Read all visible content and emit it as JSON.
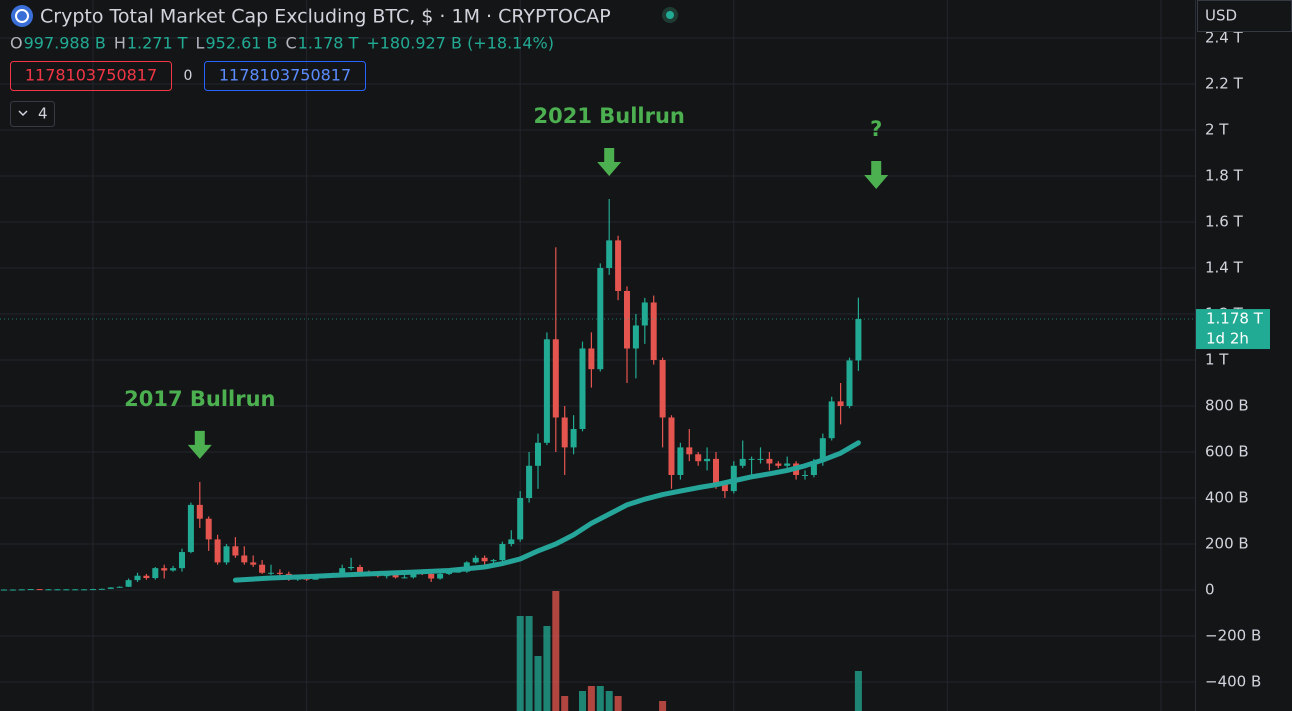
{
  "chart_data": {
    "type": "candlestick",
    "title": "Crypto Total Market Cap Excluding BTC, $ · 1M · CRYPTOCAP",
    "ohlc_legend": [
      {
        "label": "O",
        "value": "997.988 B"
      },
      {
        "label": "H",
        "value": "1.271 T"
      },
      {
        "label": "L",
        "value": "952.61 B"
      },
      {
        "label": "C",
        "value": "1.178 T"
      }
    ],
    "change": "+180.927 B (+18.14%)",
    "indicator_boxes": [
      "1178103750817",
      "0",
      "1178103750817"
    ],
    "indicator_count": "4",
    "currency": "USD",
    "price_tag": {
      "price": "1.178 T",
      "countdown": "1d 2h"
    },
    "ylim": [
      -526,
      2565
    ],
    "yticks": [
      {
        "value": 2400,
        "label": "2.4 T"
      },
      {
        "value": 2200,
        "label": "2.2 T"
      },
      {
        "value": 2000,
        "label": "2 T"
      },
      {
        "value": 1800,
        "label": "1.8 T"
      },
      {
        "value": 1600,
        "label": "1.6 T"
      },
      {
        "value": 1400,
        "label": "1.4 T"
      },
      {
        "value": 1200,
        "label": "1.2 T"
      },
      {
        "value": 1000,
        "label": "1 T"
      },
      {
        "value": 800,
        "label": "800 B"
      },
      {
        "value": 600,
        "label": "600 B"
      },
      {
        "value": 400,
        "label": "400 B"
      },
      {
        "value": 200,
        "label": "200 B"
      },
      0,
      {
        "value": -200,
        "label": "−200 B"
      },
      {
        "value": -400,
        "label": "−400 B"
      }
    ],
    "up_color": "#22ab94",
    "down_color": "#e5554f",
    "open": [
      2,
      2,
      2,
      3,
      4,
      3,
      3,
      3,
      3,
      3,
      3,
      4,
      5,
      11,
      14,
      43,
      62,
      52,
      95,
      85,
      95,
      165,
      370,
      310,
      220,
      120,
      190,
      150,
      120,
      110,
      75,
      75,
      70,
      45,
      50,
      45,
      55,
      60,
      65,
      95,
      100,
      75,
      70,
      60,
      65,
      55,
      55,
      75,
      70,
      50,
      70,
      80,
      80,
      120,
      140,
      125,
      130,
      200,
      220,
      400,
      540,
      640,
      1090,
      750,
      620,
      700,
      1050,
      960,
      1400,
      1520,
      1300,
      1050,
      1150,
      1250,
      1000,
      750,
      500,
      620,
      590,
      560,
      570,
      460,
      430,
      540,
      570,
      570,
      570,
      550,
      540,
      550,
      500,
      500,
      560,
      660,
      820,
      800,
      997.988
    ],
    "high": [
      3,
      3,
      3,
      4,
      4,
      4,
      4,
      4,
      4,
      4,
      5,
      6,
      12,
      16,
      50,
      75,
      70,
      100,
      110,
      105,
      180,
      380,
      470,
      320,
      240,
      200,
      230,
      190,
      150,
      130,
      110,
      90,
      80,
      60,
      55,
      60,
      65,
      75,
      110,
      140,
      110,
      85,
      75,
      80,
      70,
      65,
      80,
      90,
      75,
      75,
      85,
      95,
      125,
      150,
      150,
      135,
      210,
      260,
      430,
      600,
      680,
      1120,
      1490,
      800,
      760,
      1080,
      1120,
      1420,
      1700,
      1540,
      1320,
      1200,
      1270,
      1280,
      1010,
      760,
      640,
      700,
      600,
      620,
      600,
      470,
      560,
      650,
      580,
      620,
      600,
      560,
      580,
      560,
      520,
      570,
      680,
      840,
      900,
      1010,
      1271
    ],
    "low": [
      1,
      1,
      2,
      2,
      3,
      2,
      2,
      2,
      2,
      2,
      3,
      4,
      5,
      10,
      13,
      35,
      45,
      45,
      50,
      80,
      80,
      160,
      270,
      170,
      110,
      110,
      140,
      110,
      100,
      70,
      65,
      60,
      40,
      40,
      40,
      45,
      50,
      55,
      60,
      85,
      70,
      60,
      55,
      50,
      50,
      50,
      50,
      65,
      35,
      45,
      65,
      75,
      75,
      115,
      110,
      110,
      125,
      190,
      210,
      380,
      440,
      630,
      600,
      500,
      590,
      690,
      880,
      950,
      1370,
      1260,
      900,
      920,
      1070,
      980,
      620,
      440,
      480,
      560,
      540,
      520,
      440,
      400,
      420,
      530,
      500,
      550,
      520,
      530,
      520,
      480,
      480,
      490,
      540,
      650,
      720,
      790,
      952.61
    ],
    "close": [
      2,
      2,
      3,
      4,
      3,
      3,
      3,
      3,
      3,
      3,
      4,
      5,
      11,
      14,
      43,
      62,
      52,
      95,
      85,
      95,
      165,
      370,
      310,
      220,
      120,
      190,
      150,
      120,
      110,
      75,
      75,
      70,
      45,
      50,
      45,
      55,
      60,
      65,
      95,
      100,
      75,
      70,
      60,
      65,
      55,
      55,
      75,
      70,
      50,
      70,
      80,
      80,
      120,
      140,
      125,
      130,
      200,
      220,
      400,
      540,
      640,
      1090,
      750,
      620,
      700,
      1050,
      960,
      1400,
      1520,
      1300,
      1050,
      1150,
      1250,
      1000,
      750,
      500,
      620,
      590,
      560,
      570,
      460,
      430,
      540,
      570,
      570,
      570,
      550,
      540,
      550,
      500,
      500,
      560,
      660,
      820,
      800,
      997.988,
      1178
    ],
    "ma": {
      "color": "#26a69a",
      "x": [
        26,
        30,
        34,
        38,
        42,
        46,
        50,
        54,
        56,
        58,
        60,
        62,
        64,
        66,
        68,
        70,
        72,
        74,
        76,
        78,
        80,
        82,
        84,
        86,
        88,
        90,
        92,
        94,
        96
      ],
      "values": [
        43,
        52,
        58,
        65,
        72,
        78,
        85,
        100,
        115,
        135,
        170,
        200,
        240,
        290,
        330,
        370,
        395,
        415,
        430,
        445,
        458,
        475,
        492,
        505,
        520,
        540,
        565,
        595,
        640
      ]
    },
    "volume": {
      "x": [
        58,
        59,
        60,
        61,
        62,
        63,
        65,
        66,
        67,
        68,
        69,
        74,
        96
      ],
      "values": [
        95,
        95,
        55,
        85,
        120,
        15,
        20,
        25,
        25,
        20,
        15,
        10,
        40
      ]
    },
    "annotations": [
      {
        "text": "2017 Bullrun",
        "x": 22
      },
      {
        "text": "2021 Bullrun",
        "x": 68
      },
      {
        "text": "?",
        "x": 98
      }
    ]
  }
}
